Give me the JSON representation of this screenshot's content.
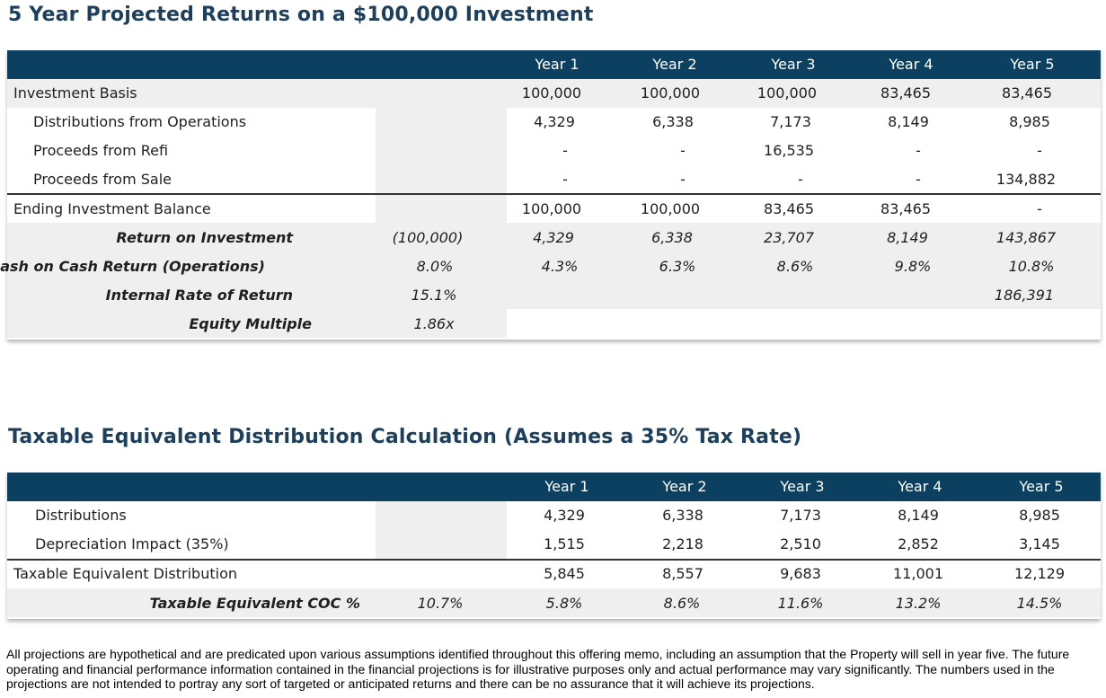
{
  "section1": {
    "title": "5 Year Projected Returns on a $100,000 Investment",
    "headers": [
      "Year 1",
      "Year 2",
      "Year 3",
      "Year 4",
      "Year 5"
    ],
    "rows": [
      {
        "label": "Investment Basis",
        "extra": "",
        "values": [
          "100,000",
          "100,000",
          "100,000",
          "83,465",
          "83,465"
        ]
      },
      {
        "label": "Distributions from Operations",
        "extra": "",
        "values": [
          "4,329",
          "6,338",
          "7,173",
          "8,149",
          "8,985"
        ]
      },
      {
        "label": "Proceeds from Refi",
        "extra": "",
        "values": [
          "-",
          "-",
          "16,535",
          "-",
          "-"
        ]
      },
      {
        "label": "Proceeds from Sale",
        "extra": "",
        "values": [
          "-",
          "-",
          "-",
          "-",
          "134,882"
        ]
      },
      {
        "label": "Ending Investment Balance",
        "extra": "",
        "values": [
          "100,000",
          "100,000",
          "83,465",
          "83,465",
          "-"
        ]
      },
      {
        "label": "Return on Investment",
        "extra": "(100,000)",
        "values": [
          "4,329",
          "6,338",
          "23,707",
          "8,149",
          "143,867"
        ]
      },
      {
        "label": "Cash on Cash Return (Operations)",
        "extra": "8.0%",
        "values": [
          "4.3%",
          "6.3%",
          "8.6%",
          "9.8%",
          "10.8%"
        ]
      },
      {
        "label": "Internal Rate of Return",
        "extra": "15.1%",
        "values": [
          "",
          "",
          "",
          "",
          "186,391"
        ]
      },
      {
        "label": "Equity Multiple",
        "extra": "1.86x",
        "values": [
          "",
          "",
          "",
          "",
          ""
        ]
      }
    ]
  },
  "section2": {
    "title": "Taxable Equivalent Distribution Calculation (Assumes a 35% Tax Rate)",
    "headers": [
      "Year 1",
      "Year 2",
      "Year 3",
      "Year 4",
      "Year 5"
    ],
    "rows": [
      {
        "label": "Distributions",
        "extra": "",
        "values": [
          "4,329",
          "6,338",
          "7,173",
          "8,149",
          "8,985"
        ]
      },
      {
        "label": "Depreciation Impact (35%)",
        "extra": "",
        "values": [
          "1,515",
          "2,218",
          "2,510",
          "2,852",
          "3,145"
        ]
      },
      {
        "label": "Taxable Equivalent Distribution",
        "extra": "",
        "values": [
          "5,845",
          "8,557",
          "9,683",
          "11,001",
          "12,129"
        ]
      },
      {
        "label": "Taxable Equivalent COC %",
        "extra": "10.7%",
        "values": [
          "5.8%",
          "8.6%",
          "11.6%",
          "13.2%",
          "14.5%"
        ]
      }
    ]
  },
  "disclaimer": "All projections are hypothetical and are predicated upon various assumptions identified throughout this offering memo, including an assumption that the Property will sell in year five. The future operating and financial performance information contained in the financial projections is for illustrative purposes only and actual performance may vary significantly.  The numbers used in the projections are not intended to portray any sort of targeted or anticipated returns and there can be no assurance that it will achieve its projections."
}
